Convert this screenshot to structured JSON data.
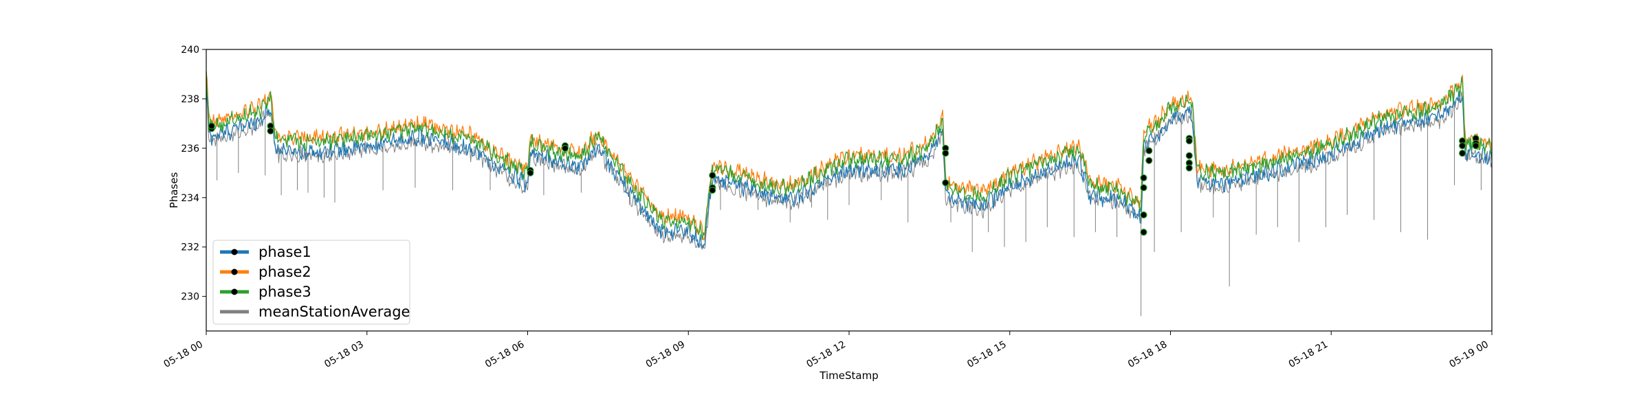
{
  "chart_data": {
    "type": "line",
    "title": "",
    "xlabel": "TimeStamp",
    "ylabel": "Phases",
    "x_range_hours": [
      0,
      24
    ],
    "ylim": [
      228.6,
      240
    ],
    "x_tick_values": [
      0,
      3,
      6,
      9,
      12,
      15,
      18,
      21,
      24
    ],
    "x_tick_labels": [
      "05-18 00",
      "05-18 03",
      "05-18 06",
      "05-18 09",
      "05-18 12",
      "05-18 15",
      "05-18 18",
      "05-18 21",
      "05-19 00"
    ],
    "y_tick_values": [
      230,
      232,
      234,
      236,
      238,
      240
    ],
    "y_tick_labels": [
      "230",
      "232",
      "234",
      "236",
      "238",
      "240"
    ],
    "grid": false,
    "legend_position": "lower-left",
    "base_x": [
      0,
      0.05,
      0.1,
      0.5,
      1.0,
      1.2,
      1.3,
      2.0,
      3.0,
      4.0,
      5.0,
      5.5,
      6.0,
      6.05,
      6.5,
      7.0,
      7.3,
      7.5,
      8.0,
      8.5,
      9.0,
      9.3,
      9.4,
      9.45,
      9.5,
      10.0,
      10.5,
      11.0,
      11.5,
      12.0,
      13.0,
      13.5,
      13.75,
      13.8,
      14.0,
      14.5,
      15.0,
      16.0,
      16.3,
      16.5,
      17.0,
      17.45,
      17.5,
      17.8,
      18.0,
      18.4,
      18.5,
      19.0,
      20.0,
      21.0,
      22.0,
      23.0,
      23.45,
      23.5,
      24.0
    ],
    "base_y": [
      239.0,
      237.0,
      236.8,
      237.1,
      237.5,
      238.0,
      236.3,
      236.2,
      236.4,
      236.8,
      236.3,
      235.5,
      234.9,
      236.2,
      235.8,
      235.6,
      236.4,
      235.8,
      234.3,
      233.0,
      233.0,
      232.4,
      234.5,
      235.0,
      235.1,
      234.8,
      234.4,
      234.3,
      235.0,
      235.5,
      235.5,
      236.0,
      237.1,
      234.5,
      234.3,
      234.0,
      234.8,
      235.7,
      235.9,
      234.4,
      234.3,
      233.6,
      236.5,
      237.0,
      237.6,
      237.8,
      235.0,
      234.9,
      235.5,
      236.1,
      237.2,
      237.6,
      238.5,
      236.2,
      236.0
    ],
    "series": [
      {
        "name": "phase1",
        "color": "#1f77b4",
        "offset": -0.35
      },
      {
        "name": "phase2",
        "color": "#ff7f0e",
        "offset": 0.2
      },
      {
        "name": "phase3",
        "color": "#2ca02c",
        "offset": 0.05
      },
      {
        "name": "meanStationAverage",
        "color": "#808080",
        "offset": -0.5
      }
    ],
    "markers": [
      {
        "x": 0.1,
        "y": 236.8
      },
      {
        "x": 0.1,
        "y": 236.9
      },
      {
        "x": 1.2,
        "y": 236.9
      },
      {
        "x": 1.2,
        "y": 236.7
      },
      {
        "x": 6.05,
        "y": 235.1
      },
      {
        "x": 6.05,
        "y": 235.0
      },
      {
        "x": 6.7,
        "y": 236.1
      },
      {
        "x": 6.7,
        "y": 236.0
      },
      {
        "x": 9.45,
        "y": 234.9
      },
      {
        "x": 9.45,
        "y": 234.4
      },
      {
        "x": 9.45,
        "y": 234.3
      },
      {
        "x": 13.8,
        "y": 236.0
      },
      {
        "x": 13.8,
        "y": 235.8
      },
      {
        "x": 13.8,
        "y": 234.6
      },
      {
        "x": 17.5,
        "y": 234.8
      },
      {
        "x": 17.5,
        "y": 234.4
      },
      {
        "x": 17.5,
        "y": 233.3
      },
      {
        "x": 17.5,
        "y": 232.6
      },
      {
        "x": 17.6,
        "y": 235.9
      },
      {
        "x": 17.6,
        "y": 235.5
      },
      {
        "x": 18.35,
        "y": 236.4
      },
      {
        "x": 18.35,
        "y": 236.3
      },
      {
        "x": 18.35,
        "y": 235.7
      },
      {
        "x": 18.35,
        "y": 235.4
      },
      {
        "x": 18.35,
        "y": 235.2
      },
      {
        "x": 23.45,
        "y": 236.3
      },
      {
        "x": 23.45,
        "y": 236.1
      },
      {
        "x": 23.45,
        "y": 235.8
      },
      {
        "x": 23.7,
        "y": 236.4
      },
      {
        "x": 23.7,
        "y": 236.2
      },
      {
        "x": 23.7,
        "y": 236.1
      }
    ],
    "dips": [
      {
        "x": 0.2,
        "y": 234.7
      },
      {
        "x": 0.6,
        "y": 235.0
      },
      {
        "x": 1.1,
        "y": 234.9
      },
      {
        "x": 1.4,
        "y": 234.1
      },
      {
        "x": 1.7,
        "y": 234.3
      },
      {
        "x": 1.9,
        "y": 234.2
      },
      {
        "x": 2.2,
        "y": 234.0
      },
      {
        "x": 2.4,
        "y": 233.8
      },
      {
        "x": 3.3,
        "y": 234.3
      },
      {
        "x": 3.9,
        "y": 234.4
      },
      {
        "x": 4.6,
        "y": 234.3
      },
      {
        "x": 5.3,
        "y": 234.3
      },
      {
        "x": 6.3,
        "y": 234.1
      },
      {
        "x": 7.0,
        "y": 234.2
      },
      {
        "x": 7.9,
        "y": 233.7
      },
      {
        "x": 9.6,
        "y": 233.5
      },
      {
        "x": 10.3,
        "y": 233.5
      },
      {
        "x": 10.9,
        "y": 233.0
      },
      {
        "x": 11.3,
        "y": 233.6
      },
      {
        "x": 11.6,
        "y": 233.1
      },
      {
        "x": 12.0,
        "y": 233.7
      },
      {
        "x": 12.6,
        "y": 233.9
      },
      {
        "x": 13.1,
        "y": 233.0
      },
      {
        "x": 13.9,
        "y": 233.0
      },
      {
        "x": 14.3,
        "y": 231.8
      },
      {
        "x": 14.6,
        "y": 232.6
      },
      {
        "x": 14.9,
        "y": 232.0
      },
      {
        "x": 15.3,
        "y": 232.2
      },
      {
        "x": 15.7,
        "y": 232.8
      },
      {
        "x": 16.2,
        "y": 232.4
      },
      {
        "x": 16.6,
        "y": 232.6
      },
      {
        "x": 17.0,
        "y": 232.4
      },
      {
        "x": 17.45,
        "y": 229.2
      },
      {
        "x": 17.7,
        "y": 231.8
      },
      {
        "x": 18.2,
        "y": 232.6
      },
      {
        "x": 18.8,
        "y": 233.2
      },
      {
        "x": 19.1,
        "y": 230.4
      },
      {
        "x": 19.6,
        "y": 232.5
      },
      {
        "x": 20.0,
        "y": 232.8
      },
      {
        "x": 20.4,
        "y": 232.2
      },
      {
        "x": 20.9,
        "y": 232.8
      },
      {
        "x": 21.3,
        "y": 233.3
      },
      {
        "x": 21.8,
        "y": 233.1
      },
      {
        "x": 22.3,
        "y": 232.6
      },
      {
        "x": 22.8,
        "y": 232.3
      },
      {
        "x": 23.3,
        "y": 234.5
      },
      {
        "x": 23.8,
        "y": 234.3
      }
    ]
  }
}
